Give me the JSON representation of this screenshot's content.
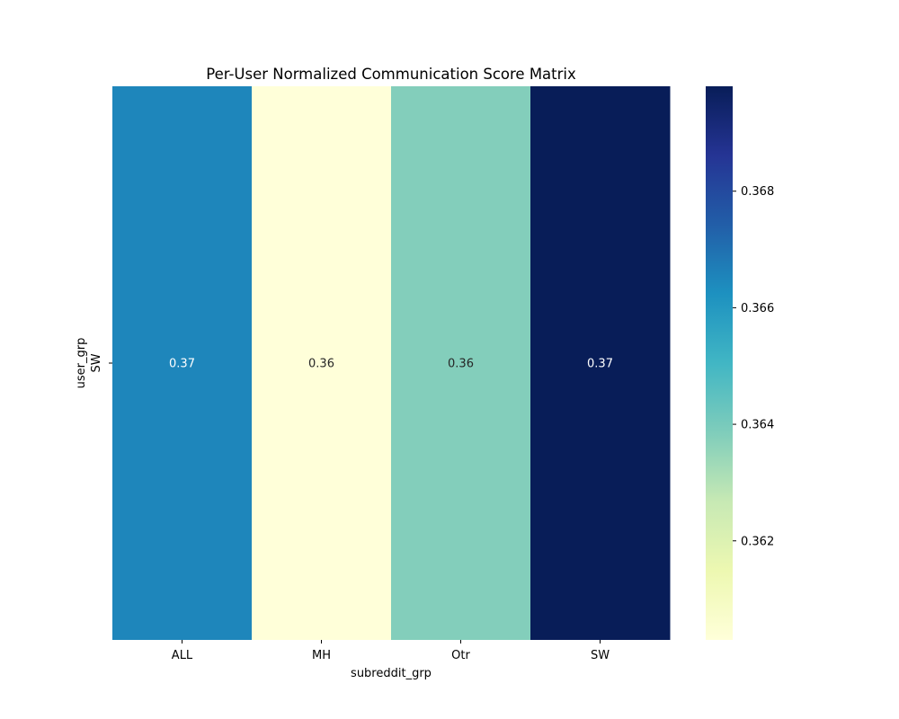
{
  "chart_data": {
    "type": "heatmap",
    "title": "Per-User Normalized Communication Score Matrix",
    "xlabel": "subreddit_grp",
    "ylabel": "user_grp",
    "x_categories": [
      "ALL",
      "MH",
      "Otr",
      "SW"
    ],
    "y_categories": [
      "SW"
    ],
    "values": [
      [
        0.3665,
        0.3603,
        0.3638,
        0.3698
      ]
    ],
    "annotations": [
      [
        "0.37",
        "0.36",
        "0.36",
        "0.37"
      ]
    ],
    "colormap": "YlGnBu",
    "colorbar": {
      "vmin": 0.3603,
      "vmax": 0.3698,
      "ticks": [
        0.362,
        0.364,
        0.366,
        0.368
      ],
      "tick_labels": [
        "0.362",
        "0.364",
        "0.366",
        "0.368"
      ]
    },
    "colormap_stops": [
      "#ffffd9",
      "#edf8b1",
      "#c7e9b4",
      "#7fcdbb",
      "#41b6c4",
      "#1d91c0",
      "#225ea8",
      "#253494",
      "#081d58"
    ]
  }
}
